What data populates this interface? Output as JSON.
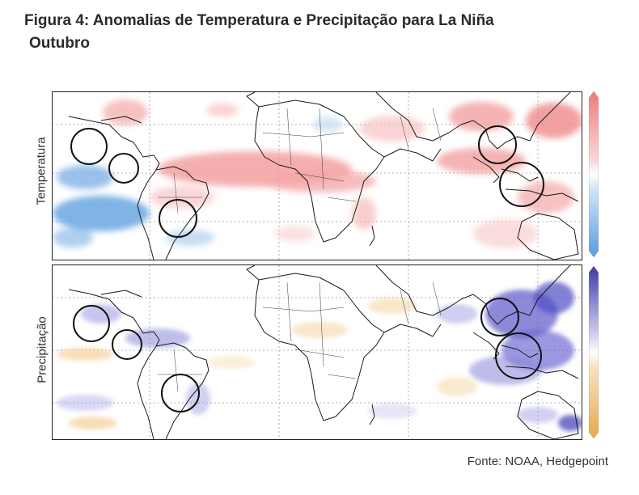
{
  "figure": {
    "title_line1": "Figura 4: Anomalias de Temperatura e Precipitação para La Niña",
    "title_line2": "Outubro",
    "source": "Fonte: NOAA, Hedgepoint"
  },
  "panels": {
    "temperature": {
      "label": "Temperatura"
    },
    "precipitation": {
      "label": "Precipitação"
    }
  },
  "colors": {
    "warm": "#f08a8a",
    "cool": "#6aa6e2",
    "wet": "#5b57c9",
    "dry": "#f1c27a",
    "border": "#1a1a1a",
    "grid": "#9a9a9a"
  },
  "highlight_regions": [
    "Central America",
    "Northern South America",
    "Southern Brazil",
    "Southeast Asia",
    "Indonesia"
  ]
}
